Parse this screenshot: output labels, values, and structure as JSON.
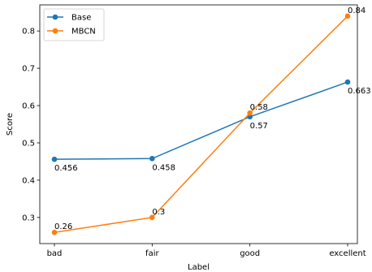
{
  "chart_data": {
    "type": "line",
    "categories": [
      "bad",
      "fair",
      "good",
      "excellent"
    ],
    "xlabel": "Label",
    "ylabel": "Score",
    "ylim": [
      0.23,
      0.87
    ],
    "yticks": [
      0.3,
      0.4,
      0.5,
      0.6,
      0.7,
      0.8
    ],
    "ytick_labels": [
      "0.3",
      "0.4",
      "0.5",
      "0.6",
      "0.7",
      "0.8"
    ],
    "legend_placement": "top-left",
    "grid": false,
    "series": [
      {
        "name": "Base",
        "color": "#1f77b4",
        "values": [
          0.456,
          0.458,
          0.57,
          0.663
        ],
        "labels": [
          "0.456",
          "0.458",
          "0.57",
          "0.663"
        ]
      },
      {
        "name": "MBCN",
        "color": "#ff7f0e",
        "values": [
          0.26,
          0.3,
          0.58,
          0.84
        ],
        "labels": [
          "0.26",
          "0.3",
          "0.58",
          "0.84"
        ]
      }
    ]
  }
}
